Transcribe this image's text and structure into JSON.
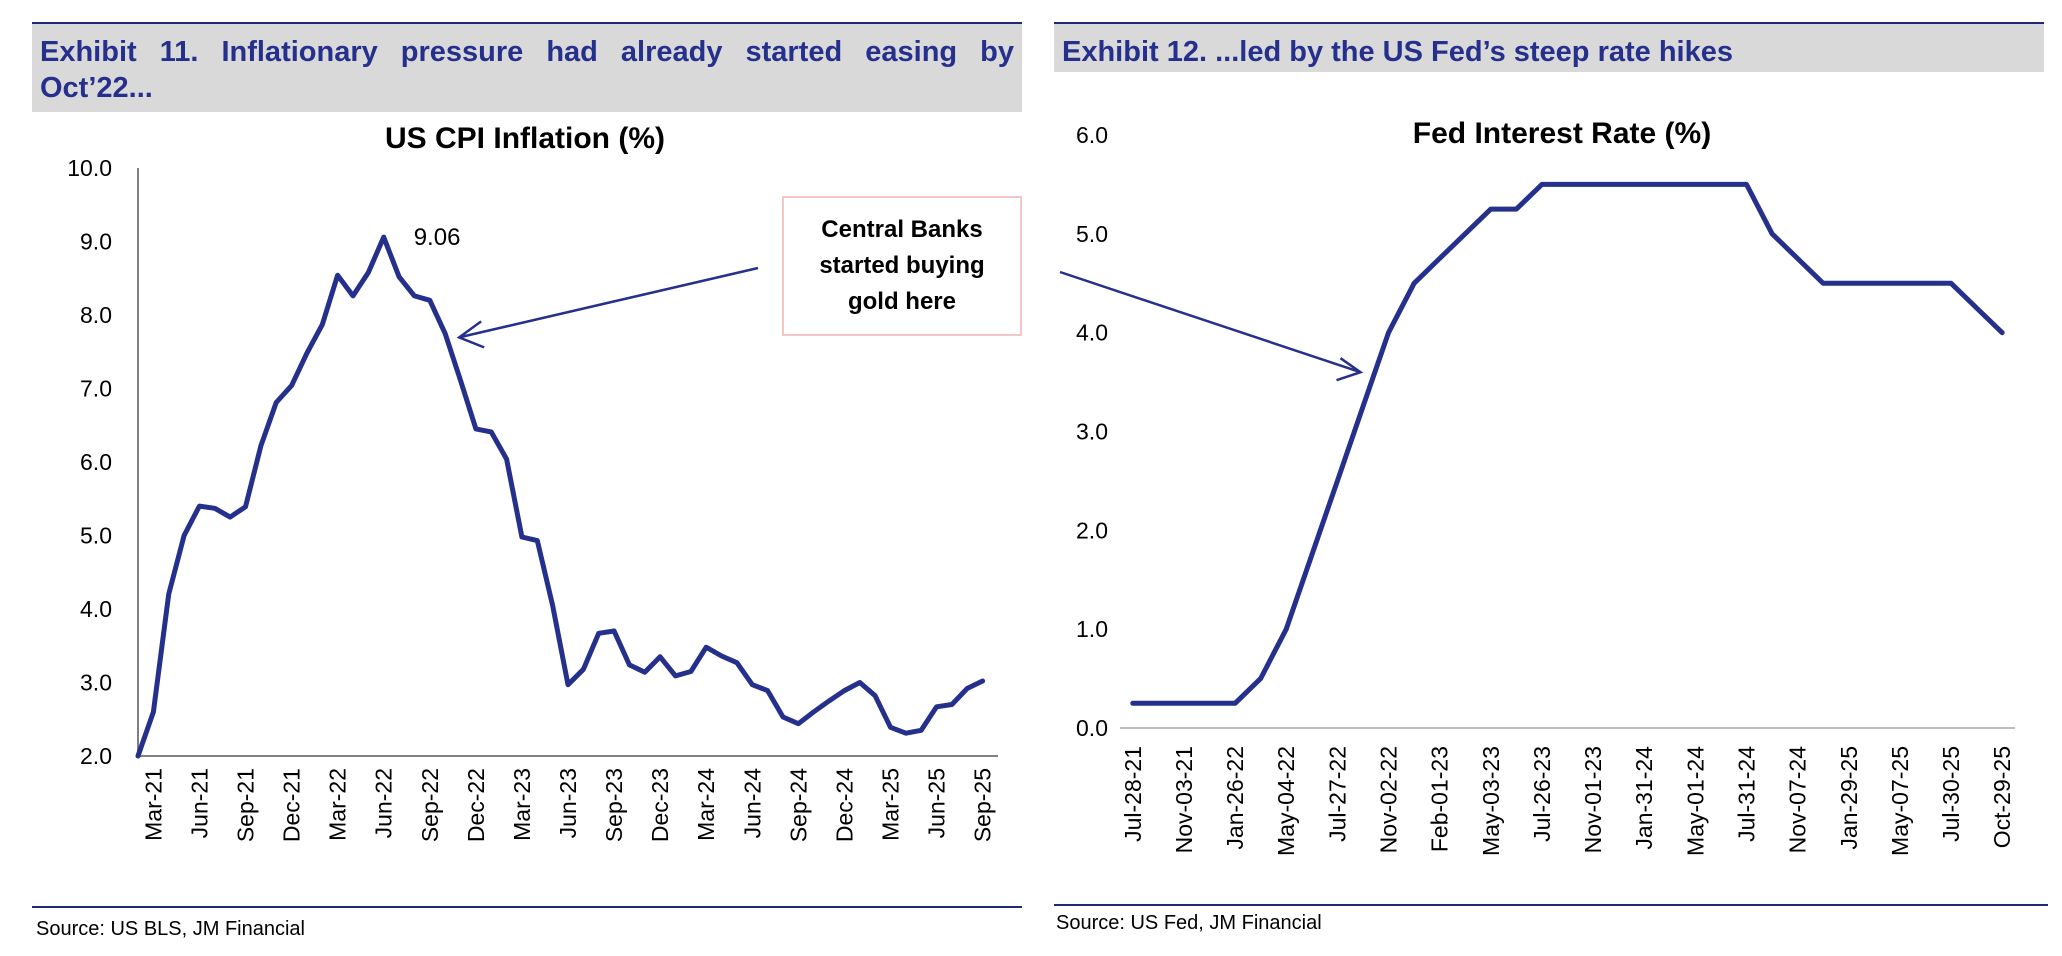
{
  "left": {
    "exhibit_title": "Exhibit 11. Inflationary pressure had already started easing by Oct’22...",
    "source": "Source: US BLS, JM Financial",
    "callout": "Central Banks started buying gold here"
  },
  "right": {
    "exhibit_title": "Exhibit 12. ...led by the US Fed’s steep rate hikes",
    "source": "Source: US Fed, JM Financial"
  },
  "colors": {
    "line": "#25308c",
    "header_bg": "#d9d9d9",
    "accent": "#25308c"
  },
  "chart_data": [
    {
      "type": "line",
      "title": "US CPI Inflation (%)",
      "xlabel": "",
      "ylabel": "",
      "ylim": [
        2.0,
        10.0
      ],
      "y_ticks": [
        "2.0",
        "3.0",
        "4.0",
        "5.0",
        "6.0",
        "7.0",
        "8.0",
        "9.0",
        "10.0"
      ],
      "x_tick_labels": [
        "Mar-21",
        "Jun-21",
        "Sep-21",
        "Dec-21",
        "Mar-22",
        "Jun-22",
        "Sep-22",
        "Dec-22",
        "Mar-23",
        "Jun-23",
        "Sep-23",
        "Dec-23",
        "Mar-24",
        "Jun-24",
        "Sep-24",
        "Dec-24",
        "Mar-25",
        "Jun-25",
        "Sep-25"
      ],
      "annotation": {
        "text": "9.06",
        "x": "Jun-22",
        "y": 9.06
      },
      "grid": false,
      "series": [
        {
          "x": [
            "Feb-21",
            "Mar-21",
            "Apr-21",
            "May-21",
            "Jun-21",
            "Jul-21",
            "Aug-21",
            "Sep-21",
            "Oct-21",
            "Nov-21",
            "Dec-21",
            "Jan-22",
            "Feb-22",
            "Mar-22",
            "Apr-22",
            "May-22",
            "Jun-22",
            "Jul-22",
            "Aug-22",
            "Sep-22",
            "Oct-22",
            "Nov-22",
            "Dec-22",
            "Jan-23",
            "Feb-23",
            "Mar-23",
            "Apr-23",
            "May-23",
            "Jun-23",
            "Jul-23",
            "Aug-23",
            "Sep-23",
            "Oct-23",
            "Nov-23",
            "Dec-23",
            "Jan-24",
            "Feb-24",
            "Mar-24",
            "Apr-24",
            "May-24",
            "Jun-24",
            "Jul-24",
            "Aug-24",
            "Sep-24",
            "Oct-24",
            "Nov-24",
            "Dec-24",
            "Jan-25",
            "Feb-25",
            "Mar-25",
            "Apr-25",
            "May-25",
            "Jun-25",
            "Jul-25",
            "Aug-25",
            "Sep-25"
          ],
          "values": [
            2.0,
            2.6,
            4.2,
            5.0,
            5.4,
            5.37,
            5.25,
            5.39,
            6.22,
            6.81,
            7.04,
            7.48,
            7.87,
            8.54,
            8.26,
            8.58,
            9.06,
            8.52,
            8.26,
            8.2,
            7.75,
            7.11,
            6.45,
            6.41,
            6.04,
            4.98,
            4.93,
            4.05,
            2.97,
            3.18,
            3.67,
            3.7,
            3.24,
            3.14,
            3.35,
            3.09,
            3.15,
            3.48,
            3.36,
            3.27,
            2.97,
            2.89,
            2.53,
            2.44,
            2.6,
            2.75,
            2.89,
            3.0,
            2.82,
            2.39,
            2.31,
            2.35,
            2.67,
            2.7,
            2.92,
            3.02
          ]
        }
      ]
    },
    {
      "type": "line",
      "title": "Fed Interest Rate (%)",
      "xlabel": "",
      "ylabel": "",
      "ylim": [
        0.0,
        6.0
      ],
      "y_ticks": [
        "0.0",
        "1.0",
        "2.0",
        "3.0",
        "4.0",
        "5.0",
        "6.0"
      ],
      "x_tick_labels": [
        "Jul-28-21",
        "Nov-03-21",
        "Jan-26-22",
        "May-04-22",
        "Jul-27-22",
        "Nov-02-22",
        "Feb-01-23",
        "May-03-23",
        "Jul-26-23",
        "Nov-01-23",
        "Jan-31-24",
        "May-01-24",
        "Jul-31-24",
        "Nov-07-24",
        "Jan-29-25",
        "May-07-25",
        "Jul-30-25",
        "Oct-29-25"
      ],
      "grid": false,
      "series": [
        {
          "x": [
            "Jul-28-21",
            "Sep-22-21",
            "Nov-03-21",
            "Dec-15-21",
            "Jan-26-22",
            "Mar-16-22",
            "May-04-22",
            "Jun-15-22",
            "Jul-27-22",
            "Sep-21-22",
            "Nov-02-22",
            "Dec-14-22",
            "Feb-01-23",
            "Mar-22-23",
            "May-03-23",
            "Jun-14-23",
            "Jul-26-23",
            "Sep-20-23",
            "Nov-01-23",
            "Dec-13-23",
            "Jan-31-24",
            "Mar-20-24",
            "May-01-24",
            "Jun-12-24",
            "Jul-31-24",
            "Sep-18-24",
            "Nov-07-24",
            "Dec-18-24",
            "Jan-29-25",
            "Mar-19-25",
            "May-07-25",
            "Jun-18-25",
            "Jul-30-25",
            "Sep-17-25",
            "Oct-29-25"
          ],
          "values": [
            0.25,
            0.25,
            0.25,
            0.25,
            0.25,
            0.5,
            1.0,
            1.75,
            2.5,
            3.25,
            4.0,
            4.5,
            4.75,
            5.0,
            5.25,
            5.25,
            5.5,
            5.5,
            5.5,
            5.5,
            5.5,
            5.5,
            5.5,
            5.5,
            5.5,
            5.0,
            4.75,
            4.5,
            4.5,
            4.5,
            4.5,
            4.5,
            4.5,
            4.25,
            4.0
          ]
        }
      ]
    }
  ]
}
